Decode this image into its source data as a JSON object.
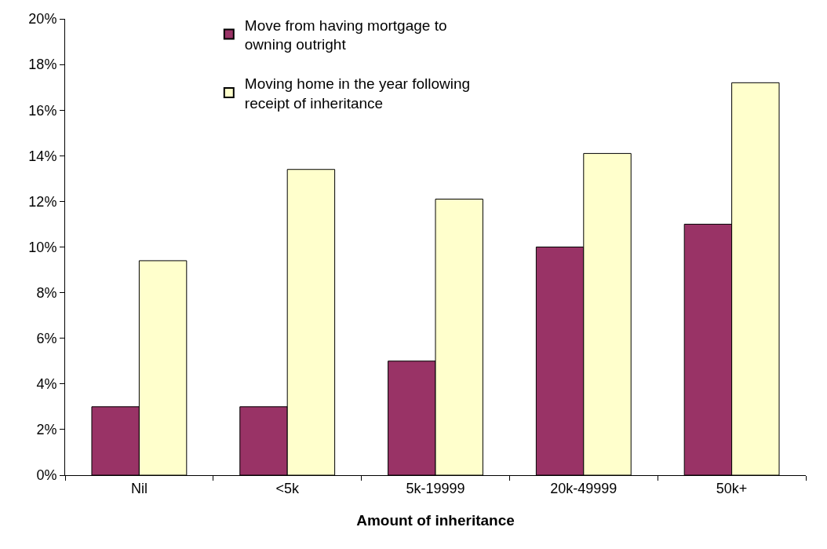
{
  "chart_data": {
    "type": "bar",
    "xlabel": "Amount of inheritance",
    "categories": [
      "Nil",
      "<5k",
      "5k-19999",
      "20k-49999",
      "50k+"
    ],
    "series": [
      {
        "name": "Move from having mortgage to owning outright",
        "color": "#993366",
        "values": [
          3,
          3,
          5,
          10,
          11
        ]
      },
      {
        "name": "Moving home in the year following receipt of inheritance",
        "color": "#ffffcc",
        "values": [
          9.4,
          13.4,
          12.1,
          14.1,
          17.2
        ]
      }
    ],
    "ylim": [
      0,
      20
    ],
    "yticks": [
      {
        "value": 0,
        "label": "0%"
      },
      {
        "value": 2,
        "label": "2%"
      },
      {
        "value": 4,
        "label": "4%"
      },
      {
        "value": 6,
        "label": "6%"
      },
      {
        "value": 8,
        "label": "8%"
      },
      {
        "value": 10,
        "label": "10%"
      },
      {
        "value": 12,
        "label": "12%"
      },
      {
        "value": 14,
        "label": "14%"
      },
      {
        "value": 16,
        "label": "16%"
      },
      {
        "value": 18,
        "label": "18%"
      },
      {
        "value": 20,
        "label": "20%"
      }
    ],
    "grid": false,
    "legend": "top"
  }
}
